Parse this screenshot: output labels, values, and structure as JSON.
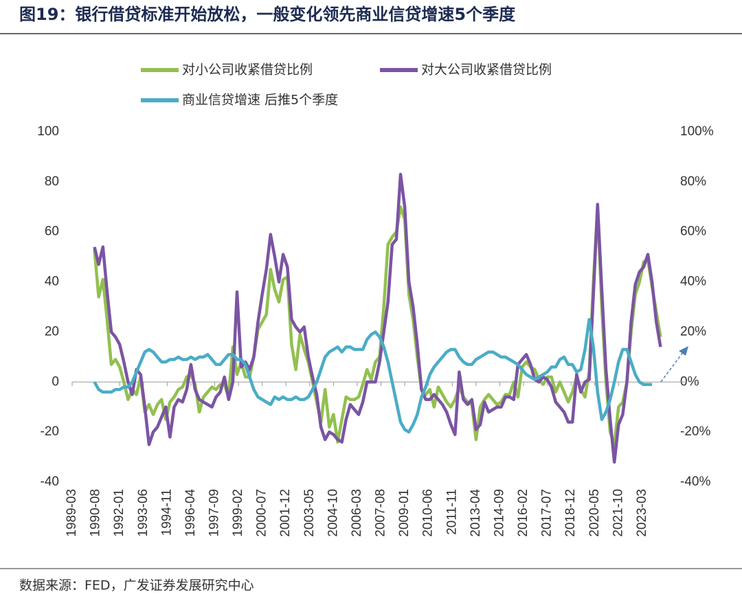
{
  "chart_data": {
    "type": "line",
    "title": "图19：银行借贷标准开始放松，一般变化领先商业信贷增速5个季度",
    "source": "数据来源：FED，广发证券发展研究中心",
    "x": [
      "1990-07",
      "1990-10",
      "1991-01",
      "1991-04",
      "1991-07",
      "1991-10",
      "1992-01",
      "1992-04",
      "1992-07",
      "1992-10",
      "1993-01",
      "1993-04",
      "1993-07",
      "1993-10",
      "1994-01",
      "1994-04",
      "1994-07",
      "1994-10",
      "1995-01",
      "1995-04",
      "1995-07",
      "1995-10",
      "1996-01",
      "1996-04",
      "1996-07",
      "1996-10",
      "1997-01",
      "1997-04",
      "1997-07",
      "1997-10",
      "1998-01",
      "1998-04",
      "1998-07",
      "1998-10",
      "1999-01",
      "1999-04",
      "1999-07",
      "1999-10",
      "2000-01",
      "2000-04",
      "2000-07",
      "2000-10",
      "2001-01",
      "2001-04",
      "2001-07",
      "2001-10",
      "2002-01",
      "2002-04",
      "2002-07",
      "2002-10",
      "2003-01",
      "2003-04",
      "2003-07",
      "2003-10",
      "2004-01",
      "2004-04",
      "2004-07",
      "2004-10",
      "2005-01",
      "2005-04",
      "2005-07",
      "2005-10",
      "2006-01",
      "2006-04",
      "2006-07",
      "2006-10",
      "2007-01",
      "2007-04",
      "2007-07",
      "2007-10",
      "2008-01",
      "2008-04",
      "2008-07",
      "2008-10",
      "2009-01",
      "2009-04",
      "2009-07",
      "2009-10",
      "2010-01",
      "2010-04",
      "2010-07",
      "2010-10",
      "2011-01",
      "2011-04",
      "2011-07",
      "2011-10",
      "2012-01",
      "2012-04",
      "2012-07",
      "2012-10",
      "2013-01",
      "2013-04",
      "2013-07",
      "2013-10",
      "2014-01",
      "2014-04",
      "2014-07",
      "2014-10",
      "2015-01",
      "2015-04",
      "2015-07",
      "2015-10",
      "2016-01",
      "2016-04",
      "2016-07",
      "2016-10",
      "2017-01",
      "2017-04",
      "2017-07",
      "2017-10",
      "2018-01",
      "2018-04",
      "2018-07",
      "2018-10",
      "2019-01",
      "2019-04",
      "2019-07",
      "2019-10",
      "2020-01",
      "2020-04",
      "2020-07",
      "2020-10",
      "2021-01",
      "2021-04",
      "2021-07",
      "2021-10",
      "2022-01",
      "2022-04",
      "2022-07",
      "2022-10",
      "2023-01",
      "2023-04",
      "2023-07",
      "2023-10",
      "2024-01",
      "2024-04"
    ],
    "series": [
      {
        "name": "对小公司收紧借贷比例",
        "color": "#92c050",
        "values": [
          53,
          34,
          41,
          25,
          7,
          9,
          6,
          0,
          -7,
          -3,
          -5,
          2,
          -12,
          -9,
          -13,
          -9,
          -7,
          -15,
          -8,
          -6,
          -3,
          -2,
          2,
          3,
          -1,
          -12,
          -6,
          -4,
          -2,
          -3,
          -1,
          -1,
          -6,
          14,
          3,
          8,
          2,
          2,
          10,
          21,
          24,
          27,
          45,
          37,
          32,
          41,
          42,
          15,
          5,
          19,
          13,
          8,
          0,
          -8,
          -16,
          -3,
          -18,
          -13,
          -24,
          -15,
          -6,
          -7,
          -7,
          -6,
          -1,
          5,
          1,
          8,
          10,
          30,
          55,
          58,
          60,
          70,
          65,
          35,
          25,
          10,
          -3,
          -5,
          -3,
          -10,
          -2,
          -5,
          -8,
          -10,
          -7,
          -2,
          -6,
          -8,
          -9,
          -23,
          -10,
          -7,
          -5,
          -7,
          -9,
          -8,
          -5,
          -5,
          0,
          -6,
          6,
          8,
          6,
          5,
          1,
          -1,
          2,
          2,
          -4,
          0,
          -4,
          -8,
          -4,
          2,
          -3,
          -6,
          4,
          40,
          70,
          30,
          0,
          -20,
          -25,
          -10,
          -8,
          0,
          20,
          35,
          40,
          48,
          49,
          38,
          28,
          18
        ]
      },
      {
        "name": "对大公司收紧借贷比例",
        "color": "#7b54a3",
        "values": [
          54,
          47,
          54,
          36,
          20,
          18,
          15,
          8,
          0,
          -5,
          5,
          3,
          -10,
          -25,
          -20,
          -18,
          -14,
          -10,
          -22,
          -10,
          -7,
          -8,
          -3,
          7,
          -3,
          -7,
          -8,
          -9,
          -10,
          -6,
          -4,
          2,
          -7,
          0,
          36,
          6,
          8,
          5,
          10,
          24,
          35,
          45,
          59,
          50,
          40,
          51,
          46,
          25,
          22,
          20,
          22,
          10,
          2,
          -5,
          -18,
          -23,
          -20,
          -21,
          -23,
          -24,
          -15,
          -9,
          -11,
          -13,
          -8,
          0,
          0,
          0,
          8,
          20,
          32,
          55,
          57,
          83,
          70,
          40,
          30,
          15,
          -3,
          -7,
          -7,
          -5,
          -7,
          -9,
          -12,
          -17,
          -21,
          4,
          -7,
          -9,
          -7,
          -19,
          -17,
          -8,
          -12,
          -11,
          -10,
          -10,
          -6,
          -6,
          -7,
          7,
          9,
          11,
          7,
          1,
          0,
          2,
          1,
          -2,
          -8,
          -10,
          -12,
          -16,
          -16,
          3,
          -4,
          0,
          1,
          35,
          71,
          37,
          5,
          -15,
          -32,
          -17,
          -13,
          0,
          24,
          39,
          44,
          46,
          51,
          40,
          24,
          14
        ]
      },
      {
        "name": "商业信贷增速 后推5个季度",
        "color": "#4bacc6",
        "axis": "y2",
        "values": [
          0,
          -3,
          -4,
          -4,
          -4,
          -3,
          -3,
          -2,
          -2,
          0,
          4,
          8,
          12,
          13,
          12,
          10,
          8,
          8,
          9,
          9,
          10,
          9,
          9,
          10,
          9,
          10,
          10,
          11,
          9,
          7,
          7,
          9,
          11,
          11,
          9,
          9,
          7,
          2,
          -3,
          -6,
          -7,
          -8,
          -9,
          -6,
          -7,
          -6,
          -7,
          -7,
          -6,
          -7,
          -7,
          -6,
          -3,
          0,
          5,
          10,
          12,
          13,
          14,
          12,
          14,
          14,
          13,
          13,
          13,
          17,
          19,
          20,
          18,
          14,
          8,
          0,
          -8,
          -16,
          -19,
          -20,
          -17,
          -13,
          -6,
          -2,
          3,
          6,
          8,
          10,
          12,
          13,
          13,
          10,
          8,
          7,
          7,
          9,
          10,
          11,
          12,
          12,
          11,
          10,
          10,
          9,
          8,
          7,
          5,
          3,
          2,
          1,
          2,
          3,
          4,
          6,
          6,
          9,
          10,
          7,
          7,
          4,
          5,
          13,
          25,
          14,
          -4,
          -15,
          -12,
          -7,
          0,
          8,
          13,
          13,
          8,
          3,
          0,
          -1,
          -1,
          -1,
          null,
          null
        ]
      }
    ],
    "xlim": [
      "1989-03",
      "2025-11"
    ],
    "xticks": [
      "1989-03",
      "1990-08",
      "1992-01",
      "1993-06",
      "1994-11",
      "1996-04",
      "1997-09",
      "1999-02",
      "2000-07",
      "2001-12",
      "2003-05",
      "2004-10",
      "2006-03",
      "2007-08",
      "2009-01",
      "2010-06",
      "2011-11",
      "2013-04",
      "2014-09",
      "2016-02",
      "2017-07",
      "2018-12",
      "2020-05",
      "2021-10",
      "2023-03"
    ],
    "ylim": [
      -40,
      100
    ],
    "yticks": [
      -40,
      -20,
      0,
      20,
      40,
      60,
      80,
      100
    ],
    "y2lim": [
      -40,
      100
    ],
    "y2ticks": [
      {
        "value": -40,
        "label": "-40%"
      },
      {
        "value": -20,
        "label": "-20%"
      },
      {
        "value": 0,
        "label": "0%"
      },
      {
        "value": 20,
        "label": "20%"
      },
      {
        "value": 40,
        "label": "40%"
      },
      {
        "value": 60,
        "label": "60%"
      },
      {
        "value": 80,
        "label": "80%"
      },
      {
        "value": 100,
        "label": "100%"
      }
    ]
  }
}
